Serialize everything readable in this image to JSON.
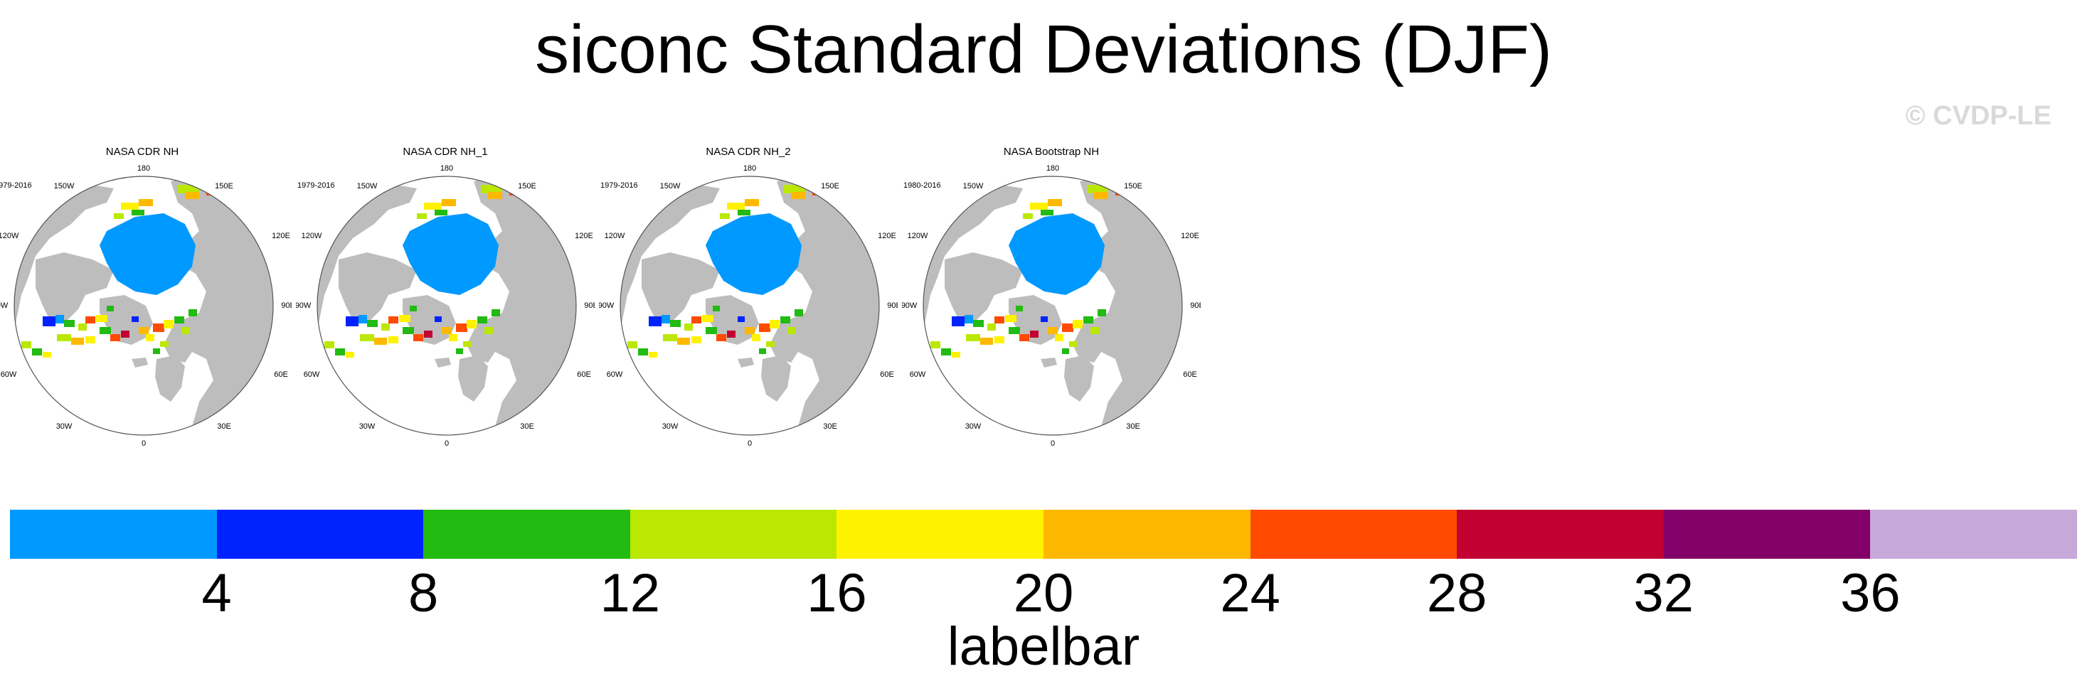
{
  "title": "siconc Standard Deviations (DJF)",
  "watermark": "© CVDP-LE",
  "panels": [
    {
      "title": "NASA CDR NH",
      "years": "1979-2016"
    },
    {
      "title": "NASA CDR NH_1",
      "years": "1979-2016"
    },
    {
      "title": "NASA CDR NH_2",
      "years": "1979-2016"
    },
    {
      "title": "NASA Bootstrap NH",
      "years": "1980-2016"
    }
  ],
  "map_labels": {
    "lon_180": "180",
    "lon_150w": "150W",
    "lon_150e": "150E",
    "lon_120w": "120W",
    "lon_120e": "120E",
    "lon_90w": "90W",
    "lon_90e": "90E",
    "lon_60w": "60W",
    "lon_60e": "60E",
    "lon_30w": "30W",
    "lon_30e": "30E",
    "lon_0": "0"
  },
  "labelbar": {
    "title": "labelbar",
    "colors": [
      "#0099ff",
      "#0022ff",
      "#22bb11",
      "#bbe800",
      "#fff200",
      "#ffb800",
      "#ff4a00",
      "#c20032",
      "#820068",
      "#c8a8d8"
    ],
    "ticks": [
      "4",
      "8",
      "12",
      "16",
      "20",
      "24",
      "28",
      "32",
      "36"
    ]
  },
  "map_colors": {
    "land": "#bdbdbd",
    "ocean": "#ffffff",
    "low_ice_std": "#0099ff"
  }
}
